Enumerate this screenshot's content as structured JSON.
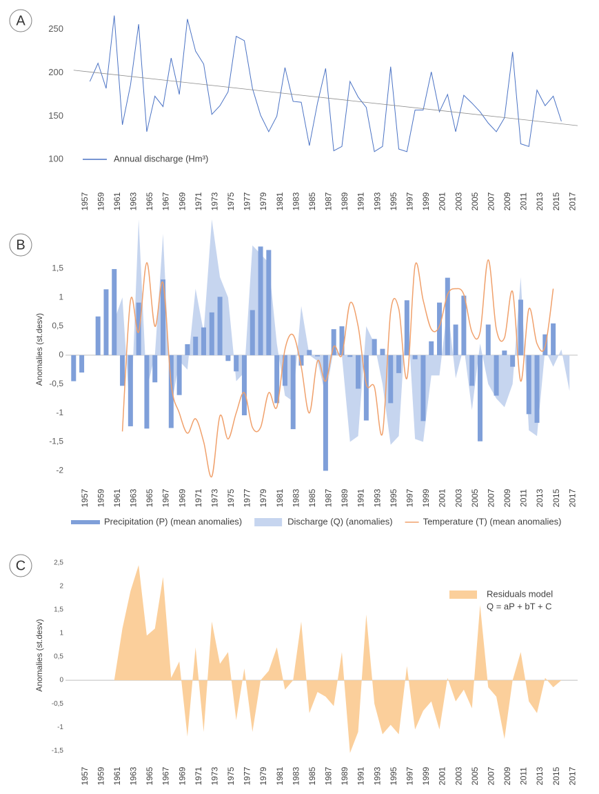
{
  "chart_data": [
    {
      "type": "line",
      "panel": "A",
      "x": [
        1958,
        1959,
        1960,
        1961,
        1962,
        1963,
        1964,
        1965,
        1966,
        1967,
        1968,
        1969,
        1970,
        1971,
        1972,
        1973,
        1974,
        1975,
        1976,
        1977,
        1978,
        1979,
        1980,
        1981,
        1982,
        1983,
        1984,
        1985,
        1986,
        1987,
        1988,
        1989,
        1990,
        1991,
        1992,
        1993,
        1994,
        1995,
        1996,
        1997,
        1998,
        1999,
        2000,
        2001,
        2002,
        2003,
        2004,
        2005,
        2006,
        2007,
        2008,
        2009,
        2010,
        2011,
        2012,
        2013,
        2014,
        2015,
        2016
      ],
      "series": [
        {
          "name": "Annual discharge (Hm³)",
          "color": "#4a72c4",
          "values": [
            190,
            211,
            182,
            266,
            140,
            186,
            256,
            132,
            173,
            161,
            217,
            175,
            262,
            225,
            210,
            152,
            162,
            178,
            242,
            237,
            182,
            151,
            132,
            150,
            206,
            167,
            166,
            116,
            165,
            205,
            110,
            115,
            190,
            172,
            160,
            109,
            115,
            207,
            112,
            109,
            157,
            157,
            201,
            155,
            175,
            132,
            174,
            165,
            155,
            142,
            132,
            148,
            224,
            118,
            115,
            180,
            162,
            173,
            144
          ]
        }
      ],
      "trend": {
        "x": [
          1956,
          2018
        ],
        "values": [
          203,
          139
        ],
        "color": "#8c8c8c"
      },
      "xlim": [
        1955,
        2018
      ],
      "xticks": [
        1957,
        1959,
        1961,
        1963,
        1965,
        1967,
        1969,
        1971,
        1973,
        1975,
        1977,
        1979,
        1981,
        1983,
        1985,
        1987,
        1989,
        1991,
        1993,
        1995,
        1997,
        1999,
        2001,
        2003,
        2005,
        2007,
        2009,
        2011,
        2013,
        2015,
        2017
      ],
      "ylim": [
        85,
        272
      ],
      "yticks": [
        100,
        150,
        200,
        250
      ],
      "legend": "lower left"
    },
    {
      "type": "combo",
      "panel": "B",
      "ylabel": "Anomalies (st.desv)",
      "x": [
        1956,
        1957,
        1958,
        1959,
        1960,
        1961,
        1962,
        1963,
        1964,
        1965,
        1966,
        1967,
        1968,
        1969,
        1970,
        1971,
        1972,
        1973,
        1974,
        1975,
        1976,
        1977,
        1978,
        1979,
        1980,
        1981,
        1982,
        1983,
        1984,
        1985,
        1986,
        1987,
        1988,
        1989,
        1990,
        1991,
        1992,
        1993,
        1994,
        1995,
        1996,
        1997,
        1998,
        1999,
        2000,
        2001,
        2002,
        2003,
        2004,
        2005,
        2006,
        2007,
        2008,
        2009,
        2010,
        2011,
        2012,
        2013,
        2014,
        2015,
        2016,
        2017
      ],
      "series": [
        {
          "name": "Precipitation (P) (mean anomalies)",
          "type": "bar",
          "color": "#7f9fd9",
          "values": [
            -0.45,
            -0.3,
            null,
            0.67,
            1.14,
            1.49,
            -0.53,
            -1.23,
            0.91,
            -1.27,
            -0.47,
            1.31,
            -1.26,
            -0.69,
            0.19,
            0.32,
            0.48,
            0.74,
            1.01,
            -0.1,
            -0.28,
            -1.04,
            0.78,
            1.88,
            1.82,
            -0.83,
            -0.53,
            -1.28,
            -0.18,
            0.09,
            -0.02,
            -2.0,
            0.45,
            0.5,
            -0.03,
            -0.58,
            -1.13,
            0.28,
            0.11,
            -0.83,
            -0.31,
            0.95,
            -0.07,
            -1.14,
            0.24,
            0.91,
            1.34,
            0.53,
            1.03,
            -0.53,
            -1.49,
            0.53,
            -0.7,
            0.08,
            -0.2,
            0.96,
            -1.02,
            -1.17,
            0.36,
            0.55,
            null,
            null
          ]
        },
        {
          "name": "Discharge (Q) (anomalies)",
          "type": "area",
          "color": "#c6d5ef",
          "values": [
            null,
            null,
            null,
            null,
            null,
            0.6,
            1.0,
            -1.2,
            2.35,
            -0.6,
            0,
            2.1,
            -0.9,
            -0.1,
            -0.25,
            1.15,
            0.4,
            2.35,
            1.35,
            1.0,
            -0.45,
            -0.3,
            1.9,
            1.75,
            1.6,
            0.2,
            -0.7,
            -0.8,
            0.85,
            0,
            -0.1,
            -0.7,
            0.1,
            0,
            -1.5,
            -1.4,
            0.5,
            0.2,
            -0.5,
            -1.55,
            -1.4,
            0.9,
            -1.45,
            -1.5,
            -0.35,
            -0.35,
            0.85,
            -0.4,
            0.15,
            -0.95,
            0.2,
            -0.5,
            -0.75,
            -0.9,
            -0.5,
            1.35,
            -1.3,
            -1.4,
            0.1,
            -0.2,
            0.1,
            -0.62
          ]
        },
        {
          "name": "Temperature (T) (mean anomalies)",
          "type": "line",
          "smooth": true,
          "color": "#f0a06b",
          "values": [
            null,
            null,
            null,
            null,
            null,
            null,
            -1.32,
            0.95,
            0.4,
            1.6,
            0.5,
            1.25,
            -0.5,
            -1.0,
            -1.35,
            -1.1,
            -1.5,
            -2.1,
            -1.05,
            -1.45,
            -1.0,
            -0.65,
            -1.25,
            -1.25,
            -0.65,
            -0.9,
            0.1,
            0.35,
            -0.2,
            -1.0,
            -0.1,
            -0.45,
            0.15,
            0,
            0.9,
            0.5,
            -0.5,
            -0.55,
            -1.35,
            0.75,
            0.8,
            -0.4,
            1.55,
            0.95,
            0.45,
            0.5,
            1.05,
            1.15,
            1.05,
            0.4,
            0.4,
            1.65,
            0.45,
            0.3,
            1.1,
            -0.45,
            0.8,
            0.2,
            0.15,
            1.15,
            null,
            null
          ]
        }
      ],
      "xlim": [
        1955,
        2018
      ],
      "xticks": [
        1957,
        1959,
        1961,
        1963,
        1965,
        1967,
        1969,
        1971,
        1973,
        1975,
        1977,
        1979,
        1981,
        1983,
        1985,
        1987,
        1989,
        1991,
        1993,
        1995,
        1997,
        1999,
        2001,
        2003,
        2005,
        2007,
        2009,
        2011,
        2013,
        2015,
        2017
      ],
      "ylim": [
        -2.15,
        2.35
      ],
      "yticks": [
        {
          "value": 1.5,
          "label": "1,5"
        },
        1,
        {
          "value": 0.5,
          "label": "0,5"
        },
        0,
        {
          "value": -0.5,
          "label": "-0,5"
        },
        -1,
        {
          "value": -1.5,
          "label": "-1,5"
        },
        -2
      ],
      "legend": "bottom"
    },
    {
      "type": "area",
      "panel": "C",
      "ylabel": "Anomalies (st.desv)",
      "x": [
        1956,
        1957,
        1958,
        1959,
        1960,
        1961,
        1962,
        1963,
        1964,
        1965,
        1966,
        1967,
        1968,
        1969,
        1970,
        1971,
        1972,
        1973,
        1974,
        1975,
        1976,
        1977,
        1978,
        1979,
        1980,
        1981,
        1982,
        1983,
        1984,
        1985,
        1986,
        1987,
        1988,
        1989,
        1990,
        1991,
        1992,
        1993,
        1994,
        1995,
        1996,
        1997,
        1998,
        1999,
        2000,
        2001,
        2002,
        2003,
        2004,
        2005,
        2006,
        2007,
        2008,
        2009,
        2010,
        2011,
        2012,
        2013,
        2014,
        2015,
        2016,
        2017
      ],
      "series": [
        {
          "name": "Residuals model",
          "color": "#fbcf9b",
          "values": [
            null,
            null,
            null,
            null,
            null,
            0,
            1.1,
            1.9,
            2.45,
            0.95,
            1.1,
            2.2,
            0.05,
            0.4,
            -1.2,
            0.7,
            -1.1,
            1.25,
            0.35,
            0.6,
            -0.85,
            0.25,
            -1.1,
            0,
            0.2,
            0.7,
            -0.2,
            0,
            1.25,
            -0.7,
            -0.25,
            -0.35,
            -0.55,
            0.6,
            -1.55,
            -1.1,
            1.4,
            -0.5,
            -1.15,
            -0.95,
            -1.15,
            0.3,
            -1.05,
            -0.65,
            -0.45,
            -1.05,
            0.05,
            -0.45,
            -0.2,
            -0.6,
            1.6,
            -0.15,
            -0.35,
            -1.25,
            0,
            0.6,
            -0.45,
            -0.7,
            0.05,
            -0.15,
            0,
            null
          ]
        }
      ],
      "legend_note": "Q = aP + bT + C",
      "xlim": [
        1955,
        2018
      ],
      "xticks": [
        1957,
        1959,
        1961,
        1963,
        1965,
        1967,
        1969,
        1971,
        1973,
        1975,
        1977,
        1979,
        1981,
        1983,
        1985,
        1987,
        1989,
        1991,
        1993,
        1995,
        1997,
        1999,
        2001,
        2003,
        2005,
        2007,
        2009,
        2011,
        2013,
        2015,
        2017
      ],
      "ylim": [
        -1.6,
        2.66
      ],
      "yticks": [
        {
          "value": 2.5,
          "label": "2,5"
        },
        2,
        {
          "value": 1.5,
          "label": "1,5"
        },
        1,
        {
          "value": 0.5,
          "label": "0,5"
        },
        0,
        {
          "value": -0.5,
          "label": "-0,5"
        },
        -1,
        {
          "value": -1.5,
          "label": "-1,5"
        }
      ],
      "legend": "upper right"
    }
  ]
}
